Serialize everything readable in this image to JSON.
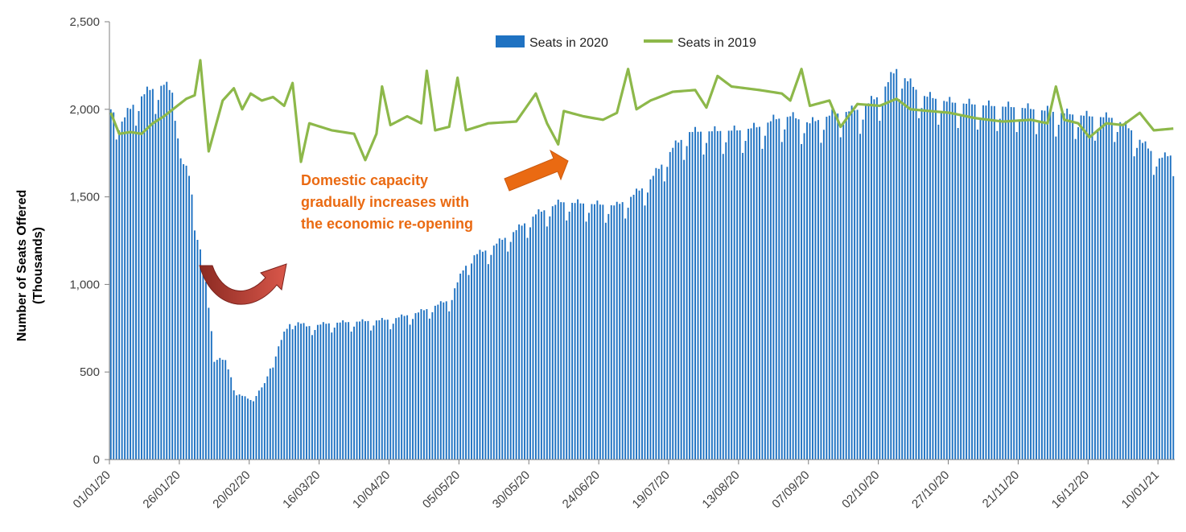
{
  "chart_data": {
    "type": "bar",
    "title": "",
    "xlabel": "",
    "ylabel": [
      "Number of Seats Offered",
      "(Thousands)"
    ],
    "ylim": [
      0,
      2500
    ],
    "yticks": [
      0,
      500,
      1000,
      1500,
      2000,
      2500
    ],
    "ytick_labels": [
      "0",
      "500",
      "1,000",
      "1,500",
      "2,000",
      "2,500"
    ],
    "start_date": "01/01/20",
    "end_date": "15/01/21",
    "xtick_labels": [
      "01/01/20",
      "26/01/20",
      "20/02/20",
      "16/03/20",
      "10/04/20",
      "05/05/20",
      "30/05/20",
      "24/06/20",
      "19/07/20",
      "13/08/20",
      "07/09/20",
      "02/10/20",
      "27/10/20",
      "21/11/20",
      "16/12/20",
      "10/01/21"
    ],
    "legend_position": "top-center",
    "grid": false,
    "series": [
      {
        "name": "Seats in 2020",
        "kind": "bar",
        "color": "#1f72c2",
        "keypoints": [
          [
            "01/01/20",
            2000
          ],
          [
            "05/01/20",
            1930
          ],
          [
            "10/01/20",
            2050
          ],
          [
            "15/01/20",
            2110
          ],
          [
            "20/01/20",
            2140
          ],
          [
            "24/01/20",
            2080
          ],
          [
            "26/01/20",
            1720
          ],
          [
            "29/01/20",
            1620
          ],
          [
            "01/02/20",
            1300
          ],
          [
            "04/02/20",
            1000
          ],
          [
            "07/02/20",
            600
          ],
          [
            "11/02/20",
            560
          ],
          [
            "15/02/20",
            380
          ],
          [
            "20/02/20",
            340
          ],
          [
            "25/02/20",
            430
          ],
          [
            "29/02/20",
            610
          ],
          [
            "03/03/20",
            720
          ],
          [
            "06/03/20",
            800
          ],
          [
            "11/03/20",
            760
          ],
          [
            "20/03/20",
            780
          ],
          [
            "01/04/20",
            790
          ],
          [
            "10/04/20",
            800
          ],
          [
            "20/04/20",
            840
          ],
          [
            "01/05/20",
            910
          ],
          [
            "06/05/20",
            1080
          ],
          [
            "09/05/20",
            1160
          ],
          [
            "15/05/20",
            1200
          ],
          [
            "25/05/20",
            1310
          ],
          [
            "01/06/20",
            1400
          ],
          [
            "10/06/20",
            1470
          ],
          [
            "20/06/20",
            1460
          ],
          [
            "30/06/20",
            1450
          ],
          [
            "05/07/20",
            1500
          ],
          [
            "10/07/20",
            1560
          ],
          [
            "15/07/20",
            1660
          ],
          [
            "20/07/20",
            1780
          ],
          [
            "26/07/20",
            1870
          ],
          [
            "13/08/20",
            1880
          ],
          [
            "20/08/20",
            1900
          ],
          [
            "25/08/20",
            1940
          ],
          [
            "31/08/20",
            1960
          ],
          [
            "07/09/20",
            1920
          ],
          [
            "15/09/20",
            1970
          ],
          [
            "25/09/20",
            2000
          ],
          [
            "02/10/20",
            2080
          ],
          [
            "08/10/20",
            2230
          ],
          [
            "12/10/20",
            2160
          ],
          [
            "17/10/20",
            2080
          ],
          [
            "27/10/20",
            2040
          ],
          [
            "10/11/20",
            2020
          ],
          [
            "21/11/20",
            2010
          ],
          [
            "01/12/20",
            1990
          ],
          [
            "10/12/20",
            1970
          ],
          [
            "16/12/20",
            1960
          ],
          [
            "25/12/20",
            1950
          ],
          [
            "31/12/20",
            1880
          ],
          [
            "05/01/21",
            1790
          ],
          [
            "10/01/21",
            1720
          ],
          [
            "15/01/21",
            1740
          ]
        ]
      },
      {
        "name": "Seats in 2019",
        "kind": "line",
        "color": "#8db84a",
        "keypoints": [
          [
            "01/01/20",
            1980
          ],
          [
            "04/01/20",
            1860
          ],
          [
            "08/01/20",
            1870
          ],
          [
            "12/01/20",
            1860
          ],
          [
            "16/01/20",
            1920
          ],
          [
            "20/01/20",
            1960
          ],
          [
            "24/01/20",
            2010
          ],
          [
            "28/01/20",
            2060
          ],
          [
            "31/01/20",
            2080
          ],
          [
            "02/02/20",
            2280
          ],
          [
            "05/02/20",
            1760
          ],
          [
            "10/02/20",
            2050
          ],
          [
            "14/02/20",
            2120
          ],
          [
            "17/02/20",
            2000
          ],
          [
            "20/02/20",
            2090
          ],
          [
            "24/02/20",
            2050
          ],
          [
            "28/02/20",
            2070
          ],
          [
            "03/03/20",
            2020
          ],
          [
            "06/03/20",
            2150
          ],
          [
            "09/03/20",
            1700
          ],
          [
            "12/03/20",
            1920
          ],
          [
            "20/03/20",
            1880
          ],
          [
            "28/03/20",
            1860
          ],
          [
            "01/04/20",
            1710
          ],
          [
            "05/04/20",
            1860
          ],
          [
            "07/04/20",
            2130
          ],
          [
            "10/04/20",
            1910
          ],
          [
            "16/04/20",
            1960
          ],
          [
            "21/04/20",
            1920
          ],
          [
            "23/04/20",
            2220
          ],
          [
            "26/04/20",
            1880
          ],
          [
            "01/05/20",
            1900
          ],
          [
            "04/05/20",
            2180
          ],
          [
            "07/05/20",
            1880
          ],
          [
            "15/05/20",
            1920
          ],
          [
            "25/05/20",
            1930
          ],
          [
            "01/06/20",
            2090
          ],
          [
            "05/06/20",
            1920
          ],
          [
            "09/06/20",
            1800
          ],
          [
            "11/06/20",
            1990
          ],
          [
            "18/06/20",
            1960
          ],
          [
            "25/06/20",
            1940
          ],
          [
            "30/06/20",
            1980
          ],
          [
            "04/07/20",
            2230
          ],
          [
            "07/07/20",
            2000
          ],
          [
            "12/07/20",
            2050
          ],
          [
            "20/07/20",
            2100
          ],
          [
            "28/07/20",
            2110
          ],
          [
            "01/08/20",
            2010
          ],
          [
            "05/08/20",
            2190
          ],
          [
            "10/08/20",
            2130
          ],
          [
            "20/08/20",
            2110
          ],
          [
            "28/08/20",
            2090
          ],
          [
            "31/08/20",
            2050
          ],
          [
            "04/09/20",
            2230
          ],
          [
            "07/09/20",
            2020
          ],
          [
            "14/09/20",
            2050
          ],
          [
            "18/09/20",
            1900
          ],
          [
            "24/09/20",
            2030
          ],
          [
            "02/10/20",
            2020
          ],
          [
            "08/10/20",
            2060
          ],
          [
            "13/10/20",
            2000
          ],
          [
            "20/10/20",
            1990
          ],
          [
            "27/10/20",
            1980
          ],
          [
            "05/11/20",
            1950
          ],
          [
            "15/11/20",
            1930
          ],
          [
            "25/11/20",
            1940
          ],
          [
            "01/12/20",
            1920
          ],
          [
            "04/12/20",
            2130
          ],
          [
            "07/12/20",
            1940
          ],
          [
            "12/12/20",
            1920
          ],
          [
            "16/12/20",
            1840
          ],
          [
            "22/12/20",
            1920
          ],
          [
            "28/12/20",
            1910
          ],
          [
            "03/01/21",
            1980
          ],
          [
            "08/01/21",
            1880
          ],
          [
            "15/01/21",
            1890
          ]
        ]
      }
    ],
    "annotations": [
      {
        "text": [
          "Domestic capacity",
          "gradually increases with",
          "the economic re-opening"
        ],
        "color": "#ea6a12"
      }
    ]
  }
}
